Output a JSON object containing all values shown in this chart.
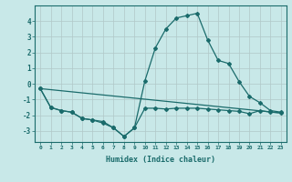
{
  "xlabel": "Humidex (Indice chaleur)",
  "background_color": "#c8e8e8",
  "grid_color": "#b0c8c8",
  "line_color": "#1a6b6b",
  "xlim": [
    -0.5,
    23.5
  ],
  "ylim": [
    -3.7,
    5.0
  ],
  "yticks": [
    -3,
    -2,
    -1,
    0,
    1,
    2,
    3,
    4
  ],
  "xticks": [
    0,
    1,
    2,
    3,
    4,
    5,
    6,
    7,
    8,
    9,
    10,
    11,
    12,
    13,
    14,
    15,
    16,
    17,
    18,
    19,
    20,
    21,
    22,
    23
  ],
  "line1_x": [
    0,
    1,
    2,
    3,
    4,
    5,
    6,
    7,
    8,
    9,
    10,
    11,
    12,
    13,
    14,
    15,
    16,
    17,
    18,
    19,
    20,
    21,
    22,
    23
  ],
  "line1_y": [
    -0.3,
    -1.5,
    -1.7,
    -1.8,
    -2.2,
    -2.3,
    -2.5,
    -2.8,
    -3.35,
    -2.8,
    0.2,
    2.3,
    3.5,
    4.2,
    4.35,
    4.5,
    2.8,
    1.5,
    1.3,
    0.15,
    -0.8,
    -1.2,
    -1.7,
    -1.8
  ],
  "line2_x": [
    0,
    1,
    2,
    3,
    4,
    5,
    6,
    7,
    8,
    9,
    10,
    11,
    12,
    13,
    14,
    15,
    16,
    17,
    18,
    19,
    20,
    21,
    22,
    23
  ],
  "line2_y": [
    -0.3,
    -1.5,
    -1.7,
    -1.8,
    -2.2,
    -2.3,
    -2.4,
    -2.8,
    -3.35,
    -2.8,
    -1.55,
    -1.55,
    -1.6,
    -1.55,
    -1.55,
    -1.55,
    -1.6,
    -1.65,
    -1.7,
    -1.75,
    -1.9,
    -1.7,
    -1.8,
    -1.85
  ],
  "line3_x": [
    0,
    23
  ],
  "line3_y": [
    -0.3,
    -1.85
  ]
}
